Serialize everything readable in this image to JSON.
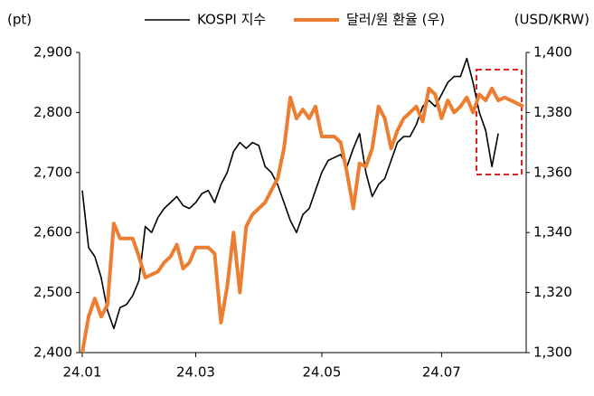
{
  "chart_data": {
    "type": "line",
    "ylabel": "(pt)",
    "y2label": "(USD/KRW)",
    "categories": [
      "24.01",
      null,
      null,
      null,
      null,
      null,
      null,
      null,
      null,
      null,
      null,
      null,
      null,
      null,
      null,
      null,
      null,
      null,
      "24.03",
      null,
      null,
      null,
      null,
      null,
      null,
      null,
      null,
      null,
      null,
      null,
      null,
      null,
      null,
      null,
      null,
      null,
      null,
      null,
      "24.05",
      null,
      null,
      null,
      null,
      null,
      null,
      null,
      null,
      null,
      null,
      null,
      null,
      null,
      null,
      null,
      null,
      null,
      null,
      "24.07",
      null,
      null,
      null,
      null,
      null,
      null,
      null,
      null,
      null,
      null,
      null,
      null,
      null
    ],
    "series": [
      {
        "name": "KOSPI 지수",
        "color": "#000000",
        "values": [
          2670,
          2575,
          2560,
          2525,
          2470,
          2440,
          2475,
          2480,
          2495,
          2520,
          2610,
          2600,
          2625,
          2640,
          2650,
          2660,
          2645,
          2640,
          2650,
          2665,
          2670,
          2650,
          2680,
          2700,
          2735,
          2750,
          2740,
          2750,
          2745,
          2710,
          2700,
          2680,
          2650,
          2620,
          2600,
          2630,
          2640,
          2670,
          2700,
          2720,
          2725,
          2730,
          2710,
          2740,
          2765,
          2700,
          2660,
          2680,
          2690,
          2720,
          2750,
          2760,
          2760,
          2780,
          2810,
          2820,
          2810,
          2830,
          2850,
          2860,
          2860,
          2890,
          2850,
          2800,
          2770,
          2710,
          2765,
          null,
          null,
          null,
          null
        ]
      },
      {
        "name": "달러/원 환율 (우)",
        "color": "#ed7d31",
        "axis": "y2",
        "values": [
          1300,
          1312,
          1318,
          1312,
          1316,
          1343,
          1338,
          1338,
          1338,
          1332,
          1325,
          1326,
          1327,
          1330,
          1332,
          1336,
          1328,
          1330,
          1335,
          1335,
          1335,
          1333,
          1310,
          1322,
          1340,
          1320,
          1342,
          1346,
          1348,
          1350,
          1354,
          1358,
          1368,
          1385,
          1378,
          1381,
          1378,
          1382,
          1372,
          1372,
          1372,
          1370,
          1360,
          1348,
          1363,
          1362,
          1368,
          1382,
          1378,
          1368,
          1374,
          1378,
          1380,
          1382,
          1377,
          1388,
          1386,
          1378,
          1384,
          1380,
          1382,
          1385,
          1380,
          1386,
          1384,
          1388,
          1384,
          1385,
          1384,
          1383,
          1382
        ]
      }
    ],
    "ylim": [
      2400,
      2900
    ],
    "yticks": [
      {
        "value": 2400,
        "label": "2,400"
      },
      {
        "value": 2500,
        "label": "2,500"
      },
      {
        "value": 2600,
        "label": "2,600"
      },
      {
        "value": 2700,
        "label": "2,700"
      },
      {
        "value": 2800,
        "label": "2,800"
      },
      {
        "value": 2900,
        "label": "2,900"
      }
    ],
    "y2lim": [
      1300,
      1400
    ],
    "y2ticks": [
      {
        "value": 1300,
        "label": "1,300"
      },
      {
        "value": 1320,
        "label": "1,320"
      },
      {
        "value": 1340,
        "label": "1,340"
      },
      {
        "value": 1360,
        "label": "1,360"
      },
      {
        "value": 1380,
        "label": "1,380"
      },
      {
        "value": 1400,
        "label": "1,400"
      }
    ],
    "grid": false,
    "legend": "top"
  }
}
